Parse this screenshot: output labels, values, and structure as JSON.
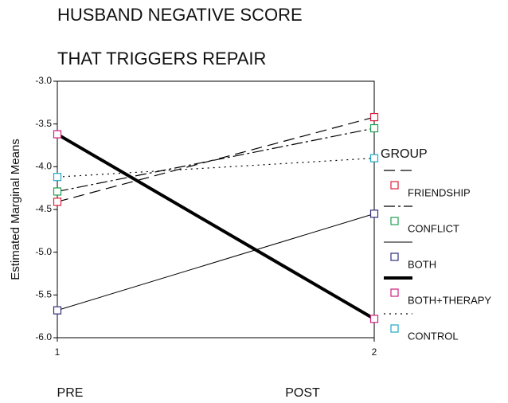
{
  "chart_data": {
    "type": "line",
    "title": [
      "HUSBAND NEGATIVE SCORE",
      "THAT TRIGGERS REPAIR"
    ],
    "y_label": "Estimated Marginal Means",
    "categories": [
      "1",
      "2"
    ],
    "annotations": [
      "PRE",
      "POST"
    ],
    "legend_title": "GROUP",
    "legend": "right",
    "ylim": [
      -6,
      -3
    ],
    "yticks": [
      {
        "value": -3,
        "label": "-3.0"
      },
      -3.5,
      {
        "value": -4,
        "label": "-4.0"
      },
      -4.5,
      {
        "value": -5,
        "label": "-5.0"
      },
      -5.5,
      {
        "value": -6,
        "label": "-6.0"
      }
    ],
    "series": [
      {
        "name": "FRIENDSHIP",
        "color": "#e0203a",
        "line_style": "dashed",
        "values": [
          -4.41,
          -3.42
        ]
      },
      {
        "name": "CONFLICT",
        "color": "#20a050",
        "line_style": "dashdot",
        "values": [
          -4.29,
          -3.55
        ]
      },
      {
        "name": "BOTH",
        "color": "#303080",
        "line_style": "solid",
        "values": [
          -5.68,
          -4.55
        ]
      },
      {
        "name": "BOTH+THERAPY",
        "color": "#d02080",
        "line_style": "thick",
        "values": [
          -3.62,
          -5.78
        ]
      },
      {
        "name": "CONTROL",
        "color": "#20a8c8",
        "line_style": "dotted",
        "values": [
          -4.12,
          -3.9
        ]
      }
    ]
  }
}
